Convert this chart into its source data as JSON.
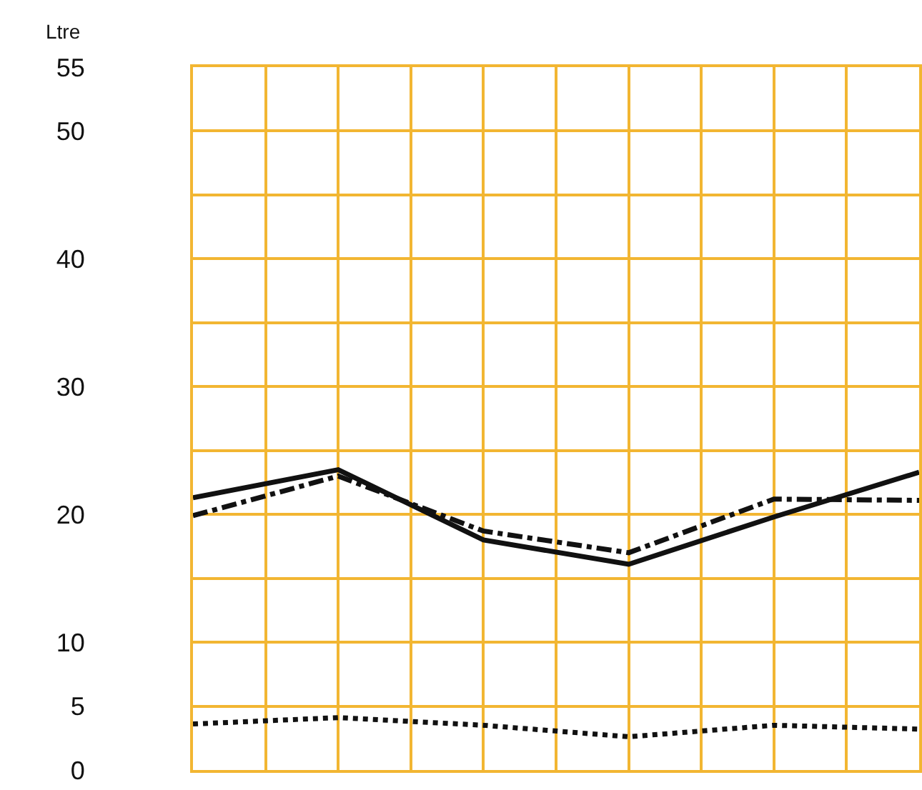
{
  "chart_data": {
    "type": "line",
    "ylabel": "Ltre",
    "categories": [
      null,
      null,
      null,
      null,
      null,
      null
    ],
    "series": [
      {
        "color": "#111111",
        "line_style": "solid",
        "values": [
          21.3,
          23.5,
          18.0,
          16.1,
          19.8,
          23.3
        ]
      },
      {
        "color": "#111111",
        "line_style": "dashdot",
        "values": [
          19.9,
          23.0,
          18.7,
          17.0,
          21.2,
          21.1
        ]
      },
      {
        "color": "#111111",
        "line_style": "dotted",
        "values": [
          3.6,
          4.1,
          3.5,
          2.6,
          3.5,
          3.2
        ]
      }
    ],
    "ylim": [
      0,
      55
    ],
    "yticks": [
      0,
      5,
      10,
      20,
      30,
      40,
      50,
      55
    ],
    "grid": true,
    "marker": "none"
  }
}
